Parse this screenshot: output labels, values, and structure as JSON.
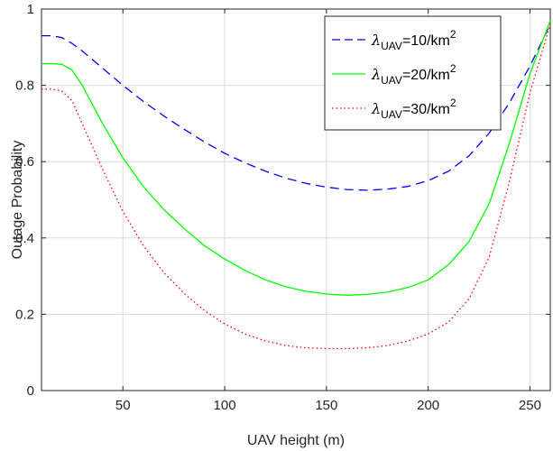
{
  "chart_data": {
    "type": "line",
    "xlabel": "UAV height (m)",
    "ylabel": "Outage Probability",
    "xlim": [
      10,
      260
    ],
    "ylim": [
      0,
      1
    ],
    "xticks": [
      50,
      100,
      150,
      200,
      250
    ],
    "yticks": [
      0,
      0.2,
      0.4,
      0.6,
      0.8,
      1
    ],
    "ytick_labels": [
      "0",
      "0.2",
      "0.4",
      "0.6",
      "0.8",
      "1"
    ],
    "grid": true,
    "legend_position": "top-right",
    "series": [
      {
        "name": "λUAV=10/km2",
        "legend": {
          "symbol": "λ",
          "subscript": "UAV",
          "text": "=10/km",
          "superscript": "2"
        },
        "color": "#0000ff",
        "style": "dashed",
        "x": [
          10,
          15,
          20,
          25,
          30,
          40,
          50,
          60,
          70,
          80,
          90,
          100,
          110,
          120,
          130,
          140,
          150,
          160,
          170,
          180,
          190,
          200,
          210,
          220,
          230,
          240,
          250,
          260
        ],
        "y": [
          0.93,
          0.93,
          0.925,
          0.91,
          0.89,
          0.845,
          0.8,
          0.758,
          0.72,
          0.685,
          0.652,
          0.622,
          0.597,
          0.575,
          0.557,
          0.543,
          0.533,
          0.527,
          0.525,
          0.528,
          0.535,
          0.55,
          0.575,
          0.615,
          0.675,
          0.755,
          0.85,
          0.96
        ]
      },
      {
        "name": "λUAV=20/km2",
        "legend": {
          "symbol": "λ",
          "subscript": "UAV",
          "text": "=20/km",
          "superscript": "2"
        },
        "color": "#00ff00",
        "style": "solid",
        "x": [
          10,
          15,
          20,
          25,
          30,
          40,
          50,
          60,
          70,
          80,
          90,
          100,
          110,
          120,
          130,
          140,
          150,
          160,
          170,
          180,
          190,
          200,
          210,
          220,
          230,
          240,
          250,
          260
        ],
        "y": [
          0.857,
          0.857,
          0.855,
          0.84,
          0.8,
          0.7,
          0.61,
          0.535,
          0.475,
          0.425,
          0.38,
          0.345,
          0.315,
          0.29,
          0.272,
          0.26,
          0.253,
          0.25,
          0.252,
          0.258,
          0.27,
          0.29,
          0.33,
          0.39,
          0.49,
          0.65,
          0.83,
          0.97
        ]
      },
      {
        "name": "λUAV=30/km2",
        "legend": {
          "symbol": "λ",
          "subscript": "UAV",
          "text": "=30/km",
          "superscript": "2"
        },
        "color": "#ff0000",
        "style": "dotted",
        "x": [
          10,
          15,
          20,
          25,
          30,
          40,
          50,
          60,
          70,
          80,
          90,
          100,
          110,
          120,
          130,
          140,
          150,
          160,
          170,
          180,
          190,
          200,
          210,
          220,
          230,
          240,
          250,
          260
        ],
        "y": [
          0.79,
          0.79,
          0.785,
          0.76,
          0.7,
          0.58,
          0.47,
          0.38,
          0.31,
          0.255,
          0.21,
          0.175,
          0.148,
          0.13,
          0.118,
          0.112,
          0.11,
          0.11,
          0.112,
          0.118,
          0.13,
          0.148,
          0.18,
          0.24,
          0.35,
          0.55,
          0.78,
          0.96
        ]
      }
    ]
  }
}
